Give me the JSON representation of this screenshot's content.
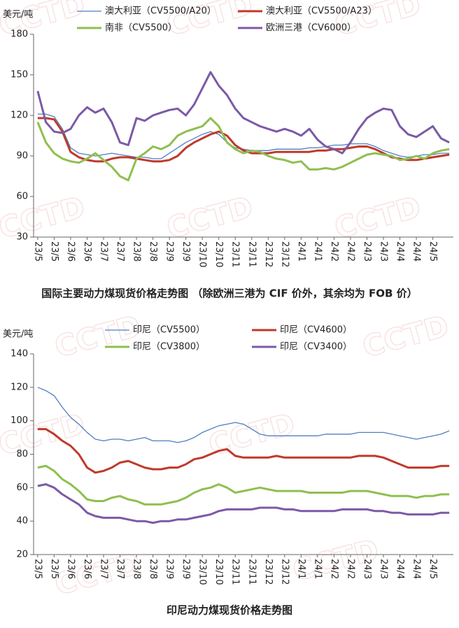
{
  "watermark": "CCTD",
  "chart_data": [
    {
      "type": "line",
      "title": "国际主要动力煤现货价格走势图  （除欧洲三港为 CIF 价外，其余均为 FOB 价）",
      "y_label": "美元/吨",
      "categories": [
        "23/5",
        null,
        "23/5",
        null,
        "23/6",
        null,
        "23/6",
        null,
        "23/7",
        null,
        "23/7",
        null,
        "23/8",
        null,
        "23/8",
        null,
        "23/9",
        null,
        "23/9",
        null,
        "23/10",
        null,
        "23/10",
        null,
        "23/11",
        null,
        "23/11",
        null,
        "23/12",
        null,
        "23/12",
        null,
        "24/1",
        null,
        "24/1",
        null,
        "24/2",
        null,
        "24/2",
        null,
        "24/3",
        null,
        "24/3",
        null,
        "24/4",
        null,
        "24/4",
        null,
        "24/5",
        null,
        null
      ],
      "ylim": [
        30,
        180
      ],
      "yticks": [
        30,
        60,
        90,
        120,
        150,
        180
      ],
      "series": [
        {
          "name": "澳大利亚（CV5500/A20）",
          "color": "#4f7ec4",
          "line_width": 1.3,
          "values": [
            121,
            121,
            119,
            110,
            96,
            92,
            91,
            90,
            91,
            92,
            91,
            90,
            89,
            89,
            88,
            88,
            92,
            96,
            100,
            103,
            106,
            108,
            106,
            100,
            96,
            95,
            94,
            94,
            94,
            95,
            95,
            95,
            95,
            96,
            96,
            97,
            98,
            98,
            99,
            99,
            99,
            97,
            94,
            92,
            90,
            89,
            90,
            91,
            91,
            92,
            92
          ]
        },
        {
          "name": "澳大利亚（CV5500/A23）",
          "color": "#c0392b",
          "line_width": 3,
          "values": [
            118,
            118,
            117,
            108,
            93,
            89,
            87,
            86,
            86,
            88,
            89,
            89,
            88,
            87,
            86,
            86,
            87,
            90,
            96,
            100,
            103,
            106,
            108,
            105,
            98,
            94,
            92,
            92,
            92,
            93,
            93,
            93,
            93,
            93,
            94,
            94,
            95,
            95,
            96,
            97,
            97,
            95,
            92,
            89,
            88,
            87,
            87,
            88,
            89,
            90,
            91
          ]
        },
        {
          "name": "南非（CV5500）",
          "color": "#8fbf4f",
          "line_width": 3,
          "values": [
            115,
            100,
            92,
            88,
            86,
            85,
            88,
            92,
            87,
            82,
            75,
            72,
            88,
            92,
            97,
            95,
            98,
            105,
            108,
            110,
            112,
            118,
            112,
            100,
            95,
            92,
            94,
            93,
            90,
            88,
            87,
            85,
            86,
            80,
            80,
            81,
            80,
            82,
            85,
            88,
            91,
            92,
            91,
            90,
            87,
            88,
            90,
            88,
            92,
            94,
            95
          ]
        },
        {
          "name": "欧洲三港（CV6000）",
          "color": "#7b5aa6",
          "line_width": 3,
          "values": [
            138,
            115,
            108,
            107,
            110,
            120,
            126,
            122,
            125,
            115,
            100,
            98,
            118,
            116,
            120,
            122,
            124,
            125,
            120,
            128,
            140,
            152,
            142,
            135,
            125,
            118,
            115,
            112,
            110,
            108,
            110,
            108,
            105,
            110,
            102,
            97,
            95,
            92,
            100,
            110,
            118,
            122,
            125,
            124,
            112,
            106,
            104,
            108,
            112,
            103,
            100
          ]
        }
      ]
    },
    {
      "type": "line",
      "title": "印尼动力煤现货价格走势图",
      "y_label": "美元/吨",
      "categories": [
        "23/5",
        null,
        "23/5",
        null,
        "23/6",
        null,
        "23/6",
        null,
        "23/7",
        null,
        "23/7",
        null,
        "23/8",
        null,
        "23/8",
        null,
        "23/9",
        null,
        "23/9",
        null,
        "23/10",
        null,
        "23/10",
        null,
        "23/11",
        null,
        "23/11",
        null,
        "23/12",
        null,
        "23/12",
        null,
        "24/1",
        null,
        "24/1",
        null,
        "24/2",
        null,
        "24/2",
        null,
        "24/3",
        null,
        "24/3",
        null,
        "24/4",
        null,
        "24/4",
        null,
        "24/5",
        null,
        null
      ],
      "ylim": [
        20,
        140
      ],
      "yticks": [
        20,
        40,
        60,
        80,
        100,
        120,
        140
      ],
      "series": [
        {
          "name": "印尼（CV5500）",
          "color": "#4f7ec4",
          "line_width": 1.3,
          "values": [
            120,
            118,
            115,
            108,
            102,
            98,
            93,
            89,
            88,
            89,
            89,
            88,
            89,
            90,
            88,
            88,
            88,
            87,
            88,
            90,
            93,
            95,
            97,
            98,
            99,
            98,
            95,
            92,
            91,
            91,
            91,
            91,
            91,
            91,
            91,
            92,
            92,
            92,
            92,
            93,
            93,
            93,
            93,
            92,
            91,
            90,
            89,
            90,
            91,
            92,
            94
          ]
        },
        {
          "name": "印尼（CV4600）",
          "color": "#c0392b",
          "line_width": 3,
          "values": [
            95,
            95,
            92,
            88,
            85,
            80,
            72,
            69,
            70,
            72,
            75,
            76,
            74,
            72,
            71,
            71,
            72,
            72,
            74,
            77,
            78,
            80,
            82,
            83,
            79,
            78,
            78,
            78,
            78,
            79,
            78,
            78,
            78,
            78,
            78,
            78,
            78,
            78,
            78,
            79,
            79,
            79,
            78,
            76,
            74,
            72,
            72,
            72,
            72,
            73,
            73
          ]
        },
        {
          "name": "印尼（CV3800）",
          "color": "#8fbf4f",
          "line_width": 3,
          "values": [
            72,
            73,
            70,
            65,
            62,
            58,
            53,
            52,
            52,
            54,
            55,
            53,
            52,
            50,
            50,
            50,
            51,
            52,
            54,
            57,
            59,
            60,
            62,
            60,
            57,
            58,
            59,
            60,
            59,
            58,
            58,
            58,
            58,
            57,
            57,
            57,
            57,
            57,
            58,
            58,
            58,
            57,
            56,
            55,
            55,
            55,
            54,
            55,
            55,
            56,
            56
          ]
        },
        {
          "name": "印尼（CV3400）",
          "color": "#7b5aa6",
          "line_width": 3,
          "values": [
            61,
            62,
            60,
            56,
            53,
            50,
            45,
            43,
            42,
            42,
            42,
            41,
            40,
            40,
            39,
            40,
            40,
            41,
            41,
            42,
            43,
            44,
            46,
            47,
            47,
            47,
            47,
            48,
            48,
            48,
            47,
            47,
            46,
            46,
            46,
            46,
            46,
            47,
            47,
            47,
            47,
            46,
            46,
            45,
            45,
            44,
            44,
            44,
            44,
            45,
            45
          ]
        }
      ]
    }
  ]
}
